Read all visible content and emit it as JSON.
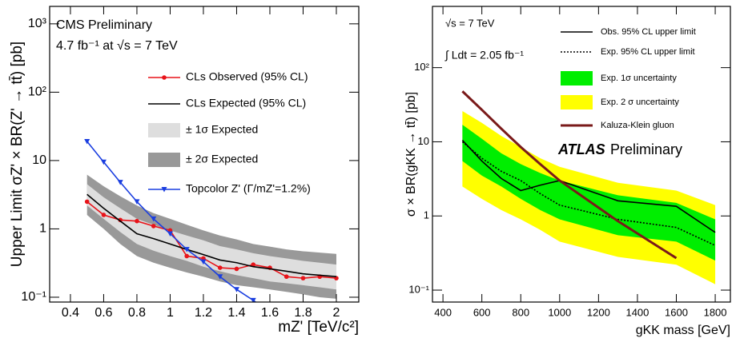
{
  "chart_data": [
    {
      "type": "line",
      "log_y": true,
      "y_label": "Upper Limit σZ' × BR(Z' → tt̄) [pb]",
      "x_label": "mZ' [TeV/c²]",
      "annotations": [
        "CMS Preliminary",
        "4.7 fb⁻¹ at √s = 7 TeV"
      ],
      "xlim": [
        0.275,
        2.135
      ],
      "xticks": [
        0.4,
        0.6,
        0.8,
        1,
        1.2,
        1.4,
        1.6,
        1.8,
        2
      ],
      "ylim": [
        0.085,
        1800
      ],
      "yticks": [
        {
          "value": 0.1,
          "label": "10⁻¹"
        },
        1,
        10,
        {
          "value": 100,
          "label": "10²"
        },
        {
          "value": 1000,
          "label": "10³"
        }
      ],
      "x": [
        0.5,
        0.6,
        0.7,
        0.8,
        0.9,
        1.0,
        1.1,
        1.2,
        1.3,
        1.4,
        1.5,
        1.6,
        1.7,
        1.8,
        1.9,
        2.0
      ],
      "series": [
        {
          "name": "CLs Observed (95% CL)",
          "kind": "line",
          "color": "#e8141a",
          "marker": "circle",
          "values": [
            2.5,
            1.6,
            1.35,
            1.3,
            1.1,
            0.95,
            0.4,
            0.37,
            0.27,
            0.26,
            0.3,
            0.27,
            0.2,
            0.19,
            0.2,
            0.19
          ]
        },
        {
          "name": "CLs Expected (95% CL)",
          "kind": "line",
          "color": "#000000",
          "values": [
            3.2,
            2.0,
            1.3,
            0.85,
            0.72,
            0.6,
            0.5,
            0.42,
            0.35,
            0.32,
            0.28,
            0.26,
            0.24,
            0.22,
            0.21,
            0.2
          ]
        },
        {
          "name": "± 1σ Expected",
          "kind": "band",
          "color": "#dedede",
          "lower": [
            2.2,
            1.4,
            0.9,
            0.6,
            0.48,
            0.4,
            0.34,
            0.28,
            0.24,
            0.21,
            0.19,
            0.17,
            0.16,
            0.15,
            0.14,
            0.13
          ],
          "upper": [
            4.5,
            2.9,
            2.0,
            1.4,
            1.15,
            0.95,
            0.8,
            0.68,
            0.56,
            0.5,
            0.44,
            0.4,
            0.37,
            0.34,
            0.32,
            0.3
          ]
        },
        {
          "name": "± 2σ Expected",
          "kind": "band",
          "color": "#999999",
          "lower": [
            1.6,
            1.0,
            0.6,
            0.4,
            0.32,
            0.27,
            0.23,
            0.2,
            0.17,
            0.15,
            0.14,
            0.13,
            0.12,
            0.11,
            0.1,
            0.095
          ],
          "upper": [
            6.2,
            4.2,
            3.0,
            2.2,
            1.7,
            1.4,
            1.15,
            0.95,
            0.8,
            0.7,
            0.6,
            0.55,
            0.5,
            0.47,
            0.45,
            0.43
          ]
        },
        {
          "name": "Topcolor Z' (Γ/mZ'=1.2%)",
          "kind": "line",
          "color": "#1a3ee0",
          "marker": "triangle",
          "values": [
            19,
            9.5,
            4.8,
            2.5,
            1.4,
            0.85,
            0.5,
            0.33,
            0.2,
            0.13,
            0.09,
            0.06,
            null,
            null,
            null,
            null
          ]
        }
      ]
    },
    {
      "type": "line",
      "log_y": true,
      "y_label": "σ × BR(gKK → tt̄) [pb]",
      "x_label": "gKK mass [GeV]",
      "annotations": [
        "√s = 7 TeV",
        "∫ Ldt = 2.05 fb⁻¹",
        "ATLAS",
        "Preliminary"
      ],
      "xlim": [
        346,
        1878
      ],
      "xticks": [
        400,
        600,
        800,
        1000,
        1200,
        1400,
        1600,
        1800
      ],
      "ylim": [
        0.069,
        670
      ],
      "yticks": [
        {
          "value": 0.1,
          "label": "10⁻¹"
        },
        1,
        10,
        {
          "value": 100,
          "label": "10²"
        }
      ],
      "x": [
        500,
        600,
        700,
        800,
        900,
        1000,
        1300,
        1600,
        1800
      ],
      "series": [
        {
          "name": "Obs. 95% CL upper limit",
          "kind": "line",
          "color": "#000000",
          "values": [
            10.5,
            5.5,
            3.2,
            2.2,
            2.6,
            3.0,
            1.6,
            1.35,
            0.6
          ]
        },
        {
          "name": "Exp. 95% CL upper limit",
          "kind": "line",
          "color": "#000000",
          "dash": true,
          "values": [
            10,
            6,
            4,
            3,
            2,
            1.4,
            0.9,
            0.7,
            0.4
          ]
        },
        {
          "name": "Exp. 1σ uncertainty",
          "kind": "band",
          "color": "#00ee00",
          "lower": [
            5.5,
            3.5,
            2.5,
            1.7,
            1.2,
            0.9,
            0.55,
            0.45,
            0.25
          ],
          "upper": [
            17,
            11,
            7,
            5,
            3.8,
            3,
            1.9,
            1.5,
            0.9
          ]
        },
        {
          "name": "Exp. 2 σ uncertainty",
          "kind": "band",
          "color": "#ffff00",
          "lower": [
            2.5,
            1.7,
            1.2,
            0.9,
            0.65,
            0.45,
            0.28,
            0.22,
            0.12
          ],
          "upper": [
            26,
            18,
            12,
            8.5,
            6,
            4.6,
            2.8,
            2.2,
            1.4
          ]
        },
        {
          "name": "Kaluza-Klein gluon",
          "kind": "line",
          "color": "#7a1a1a",
          "width": 3,
          "values": [
            48,
            27,
            15,
            8.5,
            5,
            3,
            0.85,
            0.27,
            null
          ]
        }
      ]
    }
  ]
}
